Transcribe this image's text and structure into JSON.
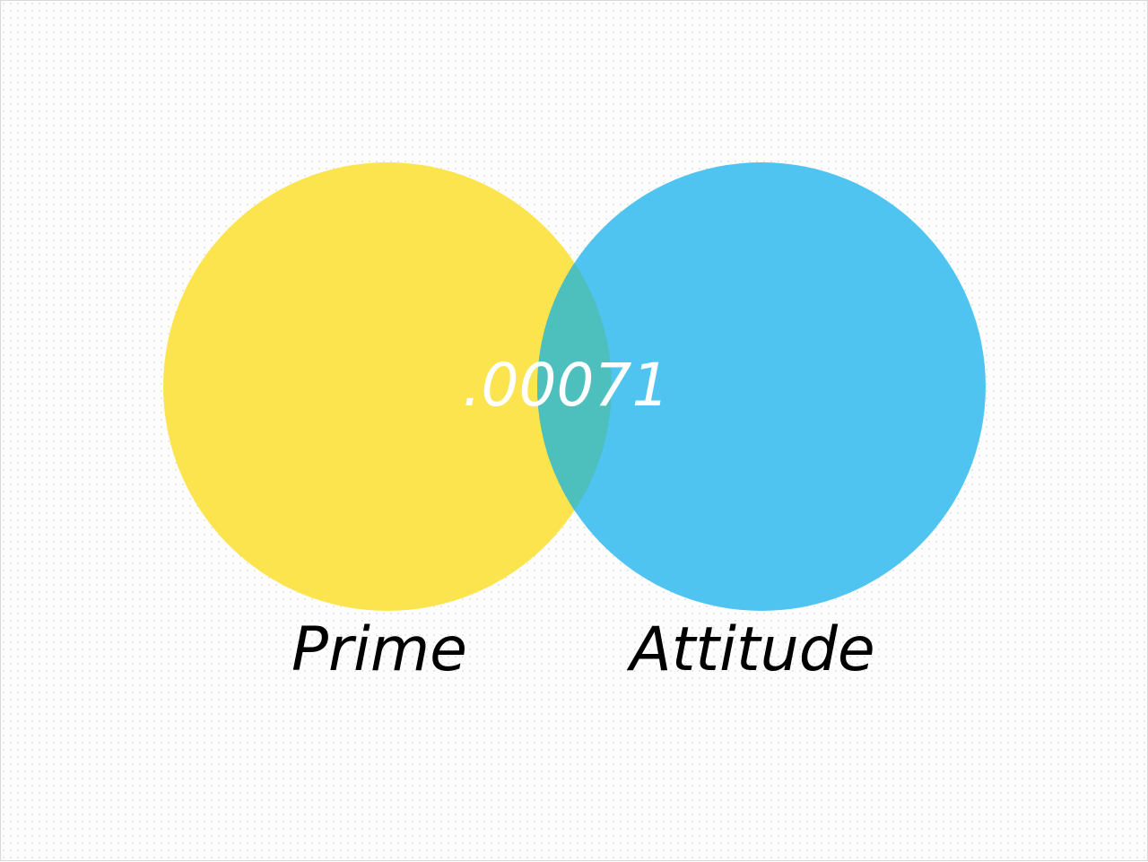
{
  "diagram": {
    "type": "venn",
    "sets": [
      {
        "label": "Prime",
        "color": "#fbe44d"
      },
      {
        "label": "Attitude",
        "color": "#4fc4f1"
      }
    ],
    "intersection": {
      "value": ".00071",
      "color": "#4dbfbd"
    }
  }
}
